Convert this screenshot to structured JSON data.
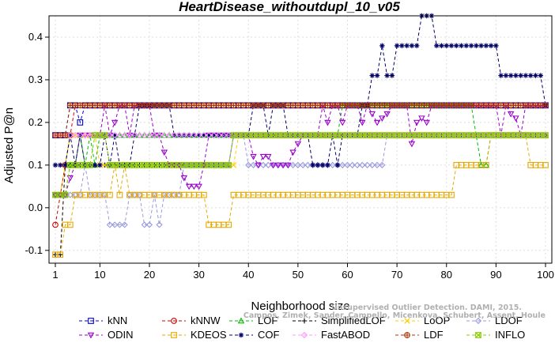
{
  "chart_data": {
    "type": "line",
    "title": "HeartDisease_withoutdupl_10_v05",
    "xlabel": "Neighborhood size",
    "ylabel": "Adjusted P@n",
    "xlim": [
      1,
      100
    ],
    "ylim": [
      -0.13,
      0.45
    ],
    "x_ticks": [
      1,
      10,
      20,
      30,
      40,
      50,
      60,
      70,
      80,
      90,
      100
    ],
    "y_ticks": [
      -0.1,
      0.0,
      0.1,
      0.2,
      0.3,
      0.4
    ],
    "grid": true,
    "legend_position": "bottom",
    "watermark": [
      "Unsupervised Outlier Detection. DAMI, 2015.",
      "Campos, Zimek, Sander, Campello, Micenkova, Schubert, Assent, Houle"
    ],
    "series": [
      {
        "name": "kNN",
        "color": "#0000cc",
        "marker": "square",
        "segments": [
          [
            1,
            0.17
          ],
          [
            3,
            0.17
          ],
          [
            4,
            0.24
          ],
          [
            5,
            0.24
          ],
          [
            6,
            0.2
          ],
          [
            7,
            0.24
          ],
          [
            100,
            0.24
          ]
        ]
      },
      {
        "name": "kNNW",
        "color": "#cc0000",
        "marker": "circle",
        "segments": [
          [
            1,
            -0.04
          ],
          [
            2,
            0.03
          ],
          [
            3,
            0.1
          ],
          [
            4,
            0.17
          ],
          [
            5,
            0.24
          ],
          [
            100,
            0.24
          ]
        ]
      },
      {
        "name": "LOF",
        "color": "#00bb00",
        "marker": "triangle-up",
        "segments": [
          [
            1,
            0.03
          ],
          [
            3,
            0.03
          ],
          [
            4,
            0.1
          ],
          [
            6,
            0.17
          ],
          [
            7,
            0.1
          ],
          [
            8,
            0.17
          ],
          [
            9,
            0.1
          ],
          [
            10,
            0.17
          ],
          [
            20,
            0.17
          ],
          [
            21,
            0.17
          ],
          [
            44,
            0.17
          ],
          [
            45,
            0.17
          ],
          [
            58,
            0.17
          ],
          [
            59,
            0.24
          ],
          [
            85,
            0.24
          ],
          [
            86,
            0.17
          ],
          [
            87,
            0.1
          ],
          [
            88,
            0.1
          ],
          [
            89,
            0.17
          ],
          [
            100,
            0.17
          ]
        ]
      },
      {
        "name": "SimplifiedLOF",
        "color": "#000000",
        "marker": "plus",
        "segments": [
          [
            1,
            -0.11
          ],
          [
            2,
            -0.11
          ],
          [
            3,
            0.1
          ],
          [
            36,
            0.1
          ],
          [
            37,
            0.17
          ],
          [
            100,
            0.17
          ]
        ]
      },
      {
        "name": "LoOP",
        "color": "#ffcc00",
        "marker": "cross",
        "segments": [
          [
            1,
            0.03
          ],
          [
            2,
            0.03
          ],
          [
            3,
            0.1
          ],
          [
            4,
            0.17
          ],
          [
            9,
            0.17
          ],
          [
            10,
            0.1
          ],
          [
            37,
            0.1
          ],
          [
            38,
            0.17
          ],
          [
            100,
            0.17
          ]
        ]
      },
      {
        "name": "LDOF",
        "color": "#9999dd",
        "marker": "diamond",
        "segments": [
          [
            1,
            0.03
          ],
          [
            6,
            0.03
          ],
          [
            7,
            0.1
          ],
          [
            8,
            0.03
          ],
          [
            10,
            0.03
          ],
          [
            12,
            -0.04
          ],
          [
            15,
            -0.04
          ],
          [
            16,
            0.03
          ],
          [
            19,
            -0.04
          ],
          [
            20,
            -0.04
          ],
          [
            21,
            0.03
          ],
          [
            22,
            -0.04
          ],
          [
            23,
            0.03
          ],
          [
            26,
            0.03
          ],
          [
            27,
            0.1
          ],
          [
            36,
            0.1
          ],
          [
            37,
            0.17
          ],
          [
            40,
            0.1
          ],
          [
            67,
            0.1
          ],
          [
            68,
            0.17
          ],
          [
            100,
            0.17
          ]
        ]
      },
      {
        "name": "ODIN",
        "color": "#9900cc",
        "marker": "triangle-down",
        "segments": [
          [
            1,
            0.03
          ],
          [
            3,
            0.03
          ],
          [
            4,
            0.07
          ],
          [
            5,
            0.1
          ],
          [
            6,
            0.17
          ],
          [
            10,
            0.17
          ],
          [
            11,
            0.24
          ],
          [
            12,
            0.17
          ],
          [
            13,
            0.2
          ],
          [
            14,
            0.24
          ],
          [
            16,
            0.17
          ],
          [
            17,
            0.24
          ],
          [
            20,
            0.24
          ],
          [
            21,
            0.17
          ],
          [
            23,
            0.13
          ],
          [
            24,
            0.1
          ],
          [
            26,
            0.1
          ],
          [
            27,
            0.07
          ],
          [
            28,
            0.05
          ],
          [
            30,
            0.05
          ],
          [
            31,
            0.1
          ],
          [
            32,
            0.17
          ],
          [
            40,
            0.17
          ],
          [
            41,
            0.12
          ],
          [
            42,
            0.1
          ],
          [
            43,
            0.12
          ],
          [
            45,
            0.1
          ],
          [
            48,
            0.1
          ],
          [
            49,
            0.13
          ],
          [
            50,
            0.15
          ],
          [
            51,
            0.17
          ],
          [
            55,
            0.24
          ],
          [
            56,
            0.2
          ],
          [
            57,
            0.24
          ],
          [
            58,
            0.24
          ],
          [
            59,
            0.2
          ],
          [
            60,
            0.24
          ],
          [
            62,
            0.24
          ],
          [
            63,
            0.2
          ],
          [
            64,
            0.24
          ],
          [
            65,
            0.22
          ],
          [
            66,
            0.2
          ],
          [
            67,
            0.21
          ],
          [
            68,
            0.22
          ],
          [
            69,
            0.24
          ],
          [
            72,
            0.24
          ],
          [
            73,
            0.15
          ],
          [
            74,
            0.2
          ],
          [
            75,
            0.21
          ],
          [
            76,
            0.2
          ],
          [
            77,
            0.24
          ],
          [
            90,
            0.24
          ],
          [
            91,
            0.17
          ],
          [
            92,
            0.24
          ],
          [
            93,
            0.22
          ],
          [
            94,
            0.21
          ],
          [
            95,
            0.17
          ],
          [
            96,
            0.24
          ],
          [
            100,
            0.24
          ]
        ]
      },
      {
        "name": "KDEOS",
        "color": "#e6a800",
        "marker": "square",
        "segments": [
          [
            1,
            -0.11
          ],
          [
            2,
            -0.11
          ],
          [
            3,
            -0.04
          ],
          [
            4,
            -0.04
          ],
          [
            5,
            0.03
          ],
          [
            12,
            0.03
          ],
          [
            13,
            0.1
          ],
          [
            14,
            0.03
          ],
          [
            15,
            0.1
          ],
          [
            16,
            0.03
          ],
          [
            31,
            0.03
          ],
          [
            32,
            -0.04
          ],
          [
            36,
            -0.04
          ],
          [
            37,
            0.03
          ],
          [
            81,
            0.03
          ],
          [
            82,
            0.1
          ],
          [
            88,
            0.1
          ],
          [
            89,
            0.17
          ],
          [
            96,
            0.17
          ],
          [
            97,
            0.1
          ],
          [
            100,
            0.1
          ]
        ]
      },
      {
        "name": "COF",
        "color": "#000066",
        "marker": "asterisk",
        "segments": [
          [
            1,
            0.1
          ],
          [
            2,
            0.1
          ],
          [
            3,
            0.1
          ],
          [
            4,
            0.17
          ],
          [
            5,
            0.1
          ],
          [
            6,
            0.17
          ],
          [
            7,
            0.1
          ],
          [
            10,
            0.1
          ],
          [
            11,
            0.17
          ],
          [
            12,
            0.1
          ],
          [
            13,
            0.17
          ],
          [
            14,
            0.1
          ],
          [
            16,
            0.1
          ],
          [
            17,
            0.17
          ],
          [
            18,
            0.24
          ],
          [
            20,
            0.24
          ],
          [
            21,
            0.24
          ],
          [
            24,
            0.24
          ],
          [
            25,
            0.17
          ],
          [
            40,
            0.17
          ],
          [
            41,
            0.24
          ],
          [
            43,
            0.24
          ],
          [
            44,
            0.17
          ],
          [
            45,
            0.24
          ],
          [
            47,
            0.24
          ],
          [
            48,
            0.17
          ],
          [
            52,
            0.17
          ],
          [
            53,
            0.1
          ],
          [
            56,
            0.1
          ],
          [
            57,
            0.17
          ],
          [
            58,
            0.1
          ],
          [
            59,
            0.17
          ],
          [
            62,
            0.17
          ],
          [
            63,
            0.24
          ],
          [
            64,
            0.24
          ],
          [
            65,
            0.31
          ],
          [
            66,
            0.31
          ],
          [
            67,
            0.38
          ],
          [
            68,
            0.31
          ],
          [
            69,
            0.31
          ],
          [
            70,
            0.38
          ],
          [
            74,
            0.38
          ],
          [
            75,
            0.45
          ],
          [
            77,
            0.45
          ],
          [
            78,
            0.38
          ],
          [
            90,
            0.38
          ],
          [
            91,
            0.31
          ],
          [
            99,
            0.31
          ],
          [
            100,
            0.24
          ]
        ]
      },
      {
        "name": "FastABOD",
        "color": "#ff99ff",
        "marker": "diamond",
        "segments": [
          [
            1,
            0.17
          ],
          [
            100,
            0.17
          ]
        ]
      },
      {
        "name": "LDF",
        "color": "#aa3300",
        "marker": "circle-plus",
        "segments": [
          [
            1,
            0.17
          ],
          [
            3,
            0.17
          ],
          [
            4,
            0.24
          ],
          [
            100,
            0.24
          ]
        ]
      },
      {
        "name": "INFLO",
        "color": "#88cc00",
        "marker": "square-x",
        "segments": [
          [
            1,
            0.03
          ],
          [
            3,
            0.03
          ],
          [
            4,
            0.1
          ],
          [
            8,
            0.1
          ],
          [
            9,
            0.17
          ],
          [
            12,
            0.1
          ],
          [
            36,
            0.1
          ],
          [
            37,
            0.17
          ],
          [
            100,
            0.17
          ]
        ]
      }
    ]
  }
}
